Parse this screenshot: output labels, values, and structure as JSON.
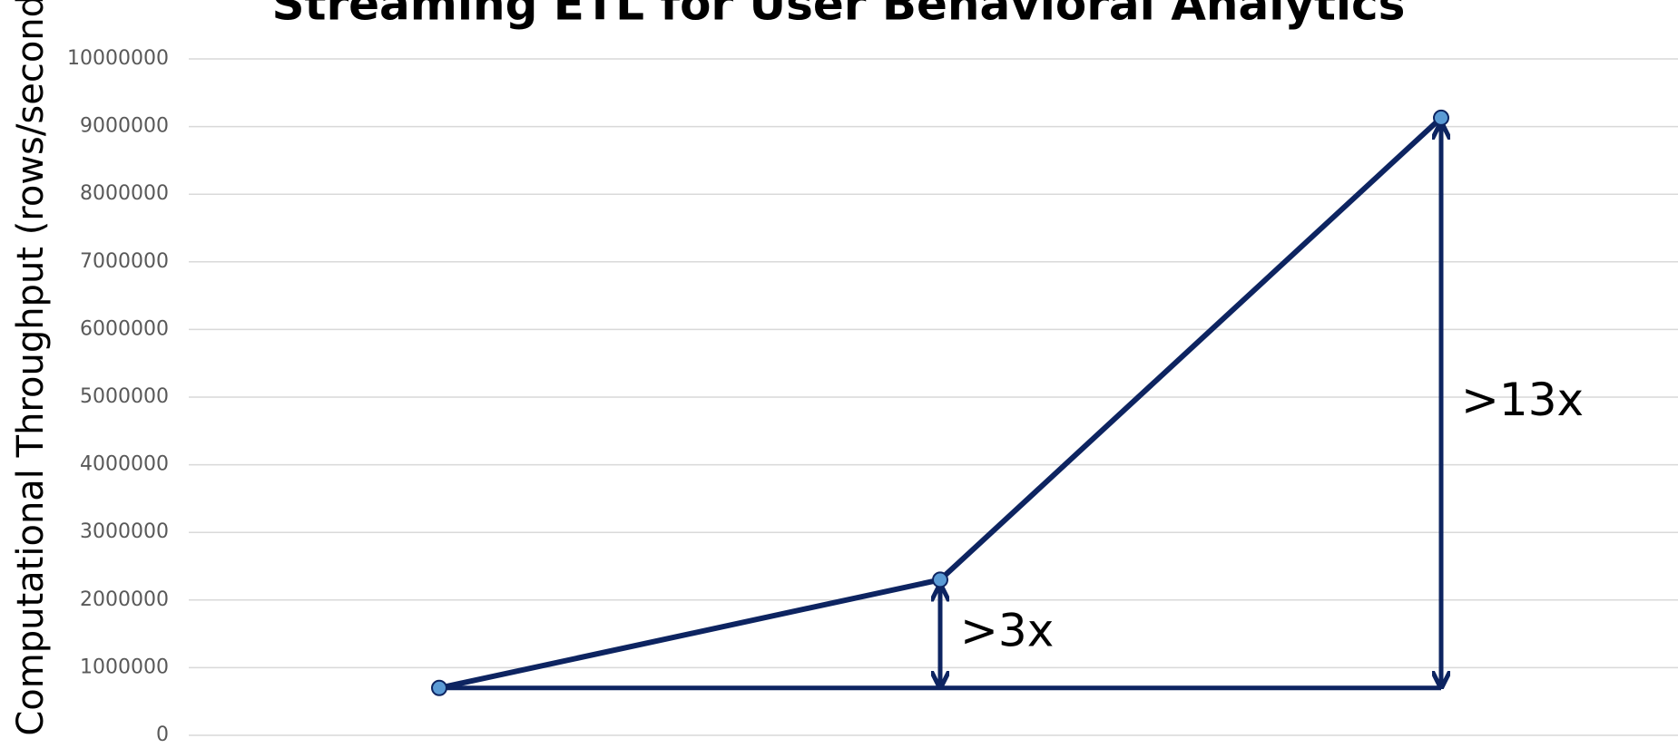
{
  "chart_data": {
    "type": "line",
    "title": "Streaming ETL for User Behavioral Analytics",
    "y_label": "Computational Throughput (rows/second)",
    "categories": [
      null,
      null,
      null
    ],
    "series": [
      {
        "name": null,
        "color": "#0d2461",
        "values": [
          700000,
          2300000,
          9130000
        ]
      }
    ],
    "ylim": [
      0,
      10000000
    ],
    "yticks": [
      0,
      1000000,
      2000000,
      3000000,
      4000000,
      5000000,
      6000000,
      7000000,
      8000000,
      9000000,
      10000000
    ],
    "grid": true,
    "annotations": [
      ">3x",
      ">13x"
    ]
  }
}
